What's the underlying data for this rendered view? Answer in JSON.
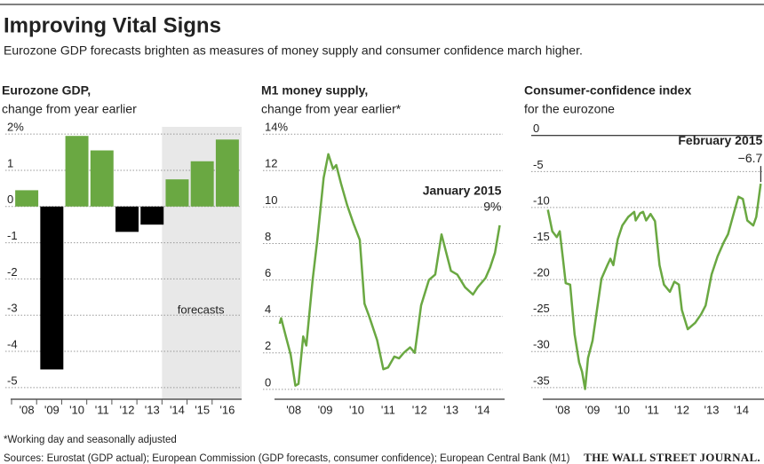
{
  "title": "Improving Vital Signs",
  "subtitle": "Eurozone GDP forecasts brighten as measures of money supply and consumer confidence march higher.",
  "footnote": "*Working day and seasonally adjusted",
  "sources": "Sources: Eurostat (GDP actual); European Commission (GDP forecasts, consumer confidence); European Central Bank (M1)",
  "credit": "THE WALL STREET JOURNAL.",
  "chart_data": [
    {
      "type": "bar",
      "title": "Eurozone GDP,",
      "subtitle": "change from year earlier",
      "categories": [
        "'08",
        "'09",
        "'10",
        "'11",
        "'12",
        "'13",
        "'14",
        "'15",
        "'16"
      ],
      "values": [
        0.45,
        -4.5,
        1.95,
        1.55,
        -0.7,
        -0.5,
        0.75,
        1.25,
        1.85
      ],
      "colors": [
        "#6aa842",
        "#000000",
        "#6aa842",
        "#6aa842",
        "#000000",
        "#000000",
        "#6aa842",
        "#6aa842",
        "#6aa842"
      ],
      "shaded_from": "'14",
      "annotation": "forecasts",
      "ylim": [
        -5.2,
        2.2
      ],
      "yticks": [
        {
          "value": 2,
          "label": "2%"
        },
        1,
        0,
        -1,
        -2,
        -3,
        -4,
        -5
      ],
      "grid": true
    },
    {
      "type": "line",
      "title": "M1 money supply,",
      "subtitle": "change from year earlier*",
      "color": "#6aa842",
      "x": [
        2008.05,
        2008.1,
        2008.25,
        2008.4,
        2008.55,
        2008.65,
        2008.8,
        2008.9,
        2009.1,
        2009.25,
        2009.45,
        2009.6,
        2009.75,
        2009.85,
        2010.0,
        2010.2,
        2010.4,
        2010.6,
        2010.75,
        2010.9,
        2011.15,
        2011.35,
        2011.5,
        2011.7,
        2011.85,
        2012.0,
        2012.2,
        2012.35,
        2012.55,
        2012.8,
        2013.0,
        2013.2,
        2013.35,
        2013.5,
        2013.7,
        2013.95,
        2014.2,
        2014.35,
        2014.6,
        2014.75,
        2014.9,
        2015.05
      ],
      "values": [
        3.6,
        3.9,
        2.9,
        1.9,
        0.2,
        0.3,
        2.9,
        2.4,
        6.0,
        8.2,
        11.6,
        12.9,
        12.1,
        12.3,
        11.3,
        10.1,
        9.1,
        8.2,
        4.7,
        4.0,
        2.7,
        1.1,
        1.2,
        1.8,
        1.7,
        2.0,
        2.3,
        2.0,
        4.6,
        6.0,
        6.3,
        8.5,
        7.5,
        6.5,
        6.3,
        5.6,
        5.2,
        5.6,
        6.1,
        6.7,
        7.5,
        9.0
      ],
      "annotation": {
        "text": "January 2015",
        "value": 9.0,
        "value_label": "9%"
      },
      "xlim": [
        2008,
        2015.15
      ],
      "xticks": [
        {
          "value": 2008.5,
          "label": "'08"
        },
        {
          "value": 2009.5,
          "label": "'09"
        },
        {
          "value": 2010.5,
          "label": "'10"
        },
        {
          "value": 2011.5,
          "label": "'11"
        },
        {
          "value": 2012.5,
          "label": "'12"
        },
        {
          "value": 2013.5,
          "label": "'13"
        },
        {
          "value": 2014.5,
          "label": "'14"
        }
      ],
      "ylim": [
        -0.3,
        14.4
      ],
      "yticks": [
        {
          "value": 14,
          "label": "14%"
        },
        12,
        10,
        8,
        6,
        4,
        2,
        0
      ],
      "grid": true
    },
    {
      "type": "line",
      "title": "Consumer-confidence index",
      "subtitle": "for the eurozone",
      "color": "#6aa842",
      "x": [
        2008.0,
        2008.15,
        2008.3,
        2008.4,
        2008.5,
        2008.6,
        2008.75,
        2008.9,
        2009.05,
        2009.15,
        2009.25,
        2009.35,
        2009.5,
        2009.65,
        2009.8,
        2010.0,
        2010.1,
        2010.2,
        2010.35,
        2010.5,
        2010.7,
        2010.9,
        2010.95,
        2011.1,
        2011.2,
        2011.3,
        2011.45,
        2011.6,
        2011.75,
        2011.9,
        2012.1,
        2012.25,
        2012.4,
        2012.5,
        2012.7,
        2012.95,
        2013.15,
        2013.3,
        2013.5,
        2013.7,
        2013.9,
        2014.05,
        2014.25,
        2014.4,
        2014.55,
        2014.7,
        2014.9,
        2015.0,
        2015.15
      ],
      "values": [
        -10.3,
        -13.3,
        -14.1,
        -13.3,
        -16.8,
        -20.5,
        -20.7,
        -27.6,
        -31.5,
        -32.8,
        -35.2,
        -30.9,
        -28.5,
        -24.2,
        -19.9,
        -18.0,
        -17.1,
        -18.0,
        -14.4,
        -12.5,
        -11.3,
        -10.6,
        -11.8,
        -10.8,
        -10.6,
        -11.8,
        -10.9,
        -11.9,
        -18.0,
        -20.7,
        -21.7,
        -20.3,
        -20.7,
        -24.2,
        -26.9,
        -26.0,
        -24.8,
        -23.6,
        -19.3,
        -16.8,
        -14.9,
        -13.7,
        -10.7,
        -8.5,
        -8.8,
        -11.8,
        -12.5,
        -11.3,
        -6.7
      ],
      "annotation": {
        "text": "February 2015",
        "value": -6.7,
        "value_label": "−6.7"
      },
      "xlim": [
        2007.95,
        2015.2
      ],
      "xticks": [
        {
          "value": 2008.5,
          "label": "'08"
        },
        {
          "value": 2009.5,
          "label": "'09"
        },
        {
          "value": 2010.5,
          "label": "'10"
        },
        {
          "value": 2011.5,
          "label": "'11"
        },
        {
          "value": 2012.5,
          "label": "'12"
        },
        {
          "value": 2013.5,
          "label": "'13"
        },
        {
          "value": 2014.5,
          "label": "'14"
        }
      ],
      "ylim": [
        -36,
        1.2
      ],
      "yticks": [
        0,
        -5,
        -10,
        -15,
        -20,
        -25,
        -30,
        -35
      ],
      "grid": true
    }
  ]
}
